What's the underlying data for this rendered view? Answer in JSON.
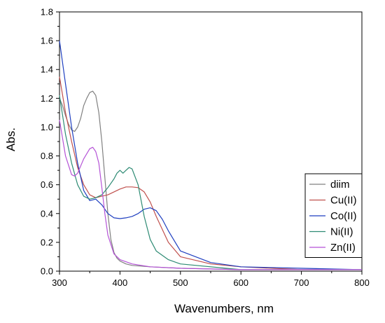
{
  "chart_data": {
    "type": "line",
    "xlabel": "Wavenumbers, nm",
    "ylabel": "Abs.",
    "xlim": [
      300,
      800
    ],
    "ylim": [
      0.0,
      1.8
    ],
    "xticks": [
      300,
      400,
      500,
      600,
      700,
      800
    ],
    "yticks": [
      0.0,
      0.2,
      0.4,
      0.6,
      0.8,
      1.0,
      1.2,
      1.4,
      1.6,
      1.8
    ],
    "xtick_labels": [
      "300",
      "400",
      "500",
      "600",
      "700",
      "800"
    ],
    "ytick_labels": [
      "0.0",
      "0.2",
      "0.4",
      "0.6",
      "0.8",
      "1.0",
      "1.2",
      "1.4",
      "1.6",
      "1.8"
    ],
    "grid": false,
    "legend_position": "bottom-right",
    "series": [
      {
        "name": "diim",
        "color": "#808080",
        "x": [
          300,
          305,
          310,
          315,
          320,
          325,
          330,
          335,
          340,
          345,
          350,
          355,
          360,
          365,
          370,
          375,
          380,
          385,
          390,
          395,
          400,
          410,
          420,
          450,
          500,
          600,
          700,
          800
        ],
        "y": [
          1.2,
          1.15,
          1.08,
          1.02,
          0.98,
          0.97,
          1.0,
          1.06,
          1.15,
          1.2,
          1.24,
          1.25,
          1.22,
          1.1,
          0.9,
          0.65,
          0.4,
          0.22,
          0.13,
          0.09,
          0.07,
          0.05,
          0.04,
          0.03,
          0.02,
          0.01,
          0.01,
          0.01
        ]
      },
      {
        "name": "Cu(II)",
        "color": "#c0504d",
        "x": [
          300,
          310,
          320,
          330,
          340,
          350,
          360,
          370,
          380,
          390,
          400,
          410,
          420,
          430,
          440,
          450,
          460,
          480,
          500,
          550,
          600,
          700,
          800
        ],
        "y": [
          1.35,
          1.1,
          0.9,
          0.72,
          0.6,
          0.53,
          0.51,
          0.52,
          0.53,
          0.55,
          0.57,
          0.585,
          0.585,
          0.58,
          0.55,
          0.48,
          0.38,
          0.2,
          0.1,
          0.05,
          0.03,
          0.01,
          0.01
        ]
      },
      {
        "name": "Co(II)",
        "color": "#1f3fc0",
        "x": [
          300,
          310,
          320,
          330,
          340,
          350,
          360,
          370,
          380,
          390,
          400,
          410,
          420,
          430,
          440,
          450,
          460,
          470,
          480,
          500,
          550,
          600,
          700,
          800
        ],
        "y": [
          1.6,
          1.3,
          1.0,
          0.75,
          0.56,
          0.49,
          0.5,
          0.46,
          0.4,
          0.37,
          0.365,
          0.37,
          0.38,
          0.4,
          0.43,
          0.44,
          0.42,
          0.36,
          0.28,
          0.14,
          0.06,
          0.03,
          0.02,
          0.01
        ]
      },
      {
        "name": "Ni(II)",
        "color": "#2e8b74",
        "x": [
          300,
          310,
          320,
          330,
          340,
          350,
          360,
          370,
          380,
          390,
          395,
          400,
          405,
          410,
          415,
          420,
          430,
          440,
          450,
          460,
          480,
          500,
          600,
          700,
          800
        ],
        "y": [
          1.22,
          0.95,
          0.75,
          0.6,
          0.52,
          0.5,
          0.51,
          0.53,
          0.58,
          0.64,
          0.68,
          0.7,
          0.68,
          0.7,
          0.72,
          0.71,
          0.6,
          0.38,
          0.22,
          0.14,
          0.08,
          0.05,
          0.01,
          0.01,
          0.01
        ]
      },
      {
        "name": "Zn(II)",
        "color": "#b452d6",
        "x": [
          300,
          310,
          320,
          325,
          330,
          340,
          350,
          355,
          360,
          365,
          370,
          375,
          380,
          390,
          400,
          420,
          450,
          500,
          600,
          700,
          800
        ],
        "y": [
          1.05,
          0.8,
          0.67,
          0.66,
          0.68,
          0.78,
          0.85,
          0.86,
          0.83,
          0.75,
          0.58,
          0.4,
          0.25,
          0.12,
          0.08,
          0.05,
          0.03,
          0.02,
          0.01,
          0.01,
          0.01
        ]
      }
    ]
  }
}
